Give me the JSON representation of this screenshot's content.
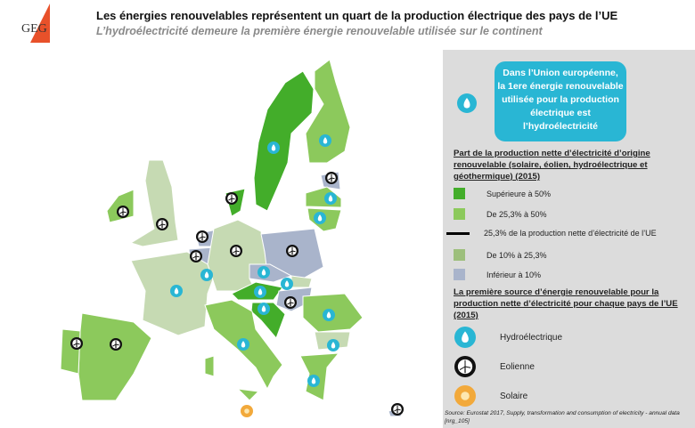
{
  "header": {
    "logo_text": "GEG",
    "title": "Les énergies renouvelables représentent un quart de la production électrique des pays de l’UE",
    "subtitle": "L’hydroélectricité demeure la première énergie renouvelable utilisée sur le continent"
  },
  "colors": {
    "sup50": "#43ad2a",
    "d25_50": "#8cc95c",
    "d10_25": "#c6dab3",
    "inf10": "#a9b4cb",
    "hydro": "#29b6d4",
    "wind": "#111111",
    "solar": "#f2a93b",
    "accent": "#e8512a"
  },
  "callout": {
    "lines": [
      "Dans l’Union européenne,",
      "la 1ere énergie renouvelable",
      "utilisée pour la production",
      "électrique est",
      "l’hydroélectricité"
    ]
  },
  "legend": {
    "share_title": "Part de la production nette d’électricité d’origine renouvelable (solaire, éolien, hydroélectrique et géothermique) (2015)",
    "items": [
      "Supérieure à 50%",
      "De 25,3% à 50%",
      "25,3% de la production nette d’électricité de l’UE",
      "De 10% à 25,3%",
      "Inférieur à 10%"
    ],
    "source_title": "La première source d’énergie renouvelable pour la production nette d’électricité pour chaque pays de l’UE (2015)",
    "sources": [
      "Hydroélectrique",
      "Eolienne",
      "Solaire"
    ]
  },
  "source_note": "Source: Eurostat 2017, Supply, transformation and consumption of electricity - annual data [nrg_105]",
  "regions": [
    {
      "cls": "sup50"
    },
    {
      "cls": "d25_50"
    },
    {
      "cls": "inf10"
    },
    {
      "cls": "d25_50"
    },
    {
      "cls": "d25_50"
    },
    {
      "cls": "sup50"
    },
    {
      "cls": "d25_50"
    },
    {
      "cls": "d10_25"
    },
    {
      "cls": "inf10"
    },
    {
      "cls": "inf10"
    },
    {
      "cls": "d10_25"
    },
    {
      "cls": "d10_25"
    },
    {
      "cls": "inf10"
    },
    {
      "cls": "inf10"
    },
    {
      "cls": "d10_25"
    },
    {
      "cls": "sup50"
    },
    {
      "cls": "inf10"
    },
    {
      "cls": "sup50"
    },
    {
      "cls": "d25_50"
    },
    {
      "cls": "d25_50"
    },
    {
      "cls": "d25_50"
    },
    {
      "cls": "d25_50"
    },
    {
      "cls": "d10_25"
    },
    {
      "cls": "d25_50"
    },
    {
      "cls": "d25_50"
    },
    {
      "cls": "d25_50"
    },
    {
      "cls": "inf10"
    }
  ],
  "markers": [
    "hydro",
    "hydro",
    "wind",
    "hydro",
    "hydro",
    "wind",
    "wind",
    "wind",
    "wind",
    "wind",
    "hydro",
    "hydro",
    "wind",
    "wind",
    "hydro",
    "hydro",
    "hydro",
    "wind",
    "hydro",
    "hydro",
    "hydro",
    "hydro",
    "hydro",
    "wind",
    "wind",
    "solar",
    "wind"
  ]
}
